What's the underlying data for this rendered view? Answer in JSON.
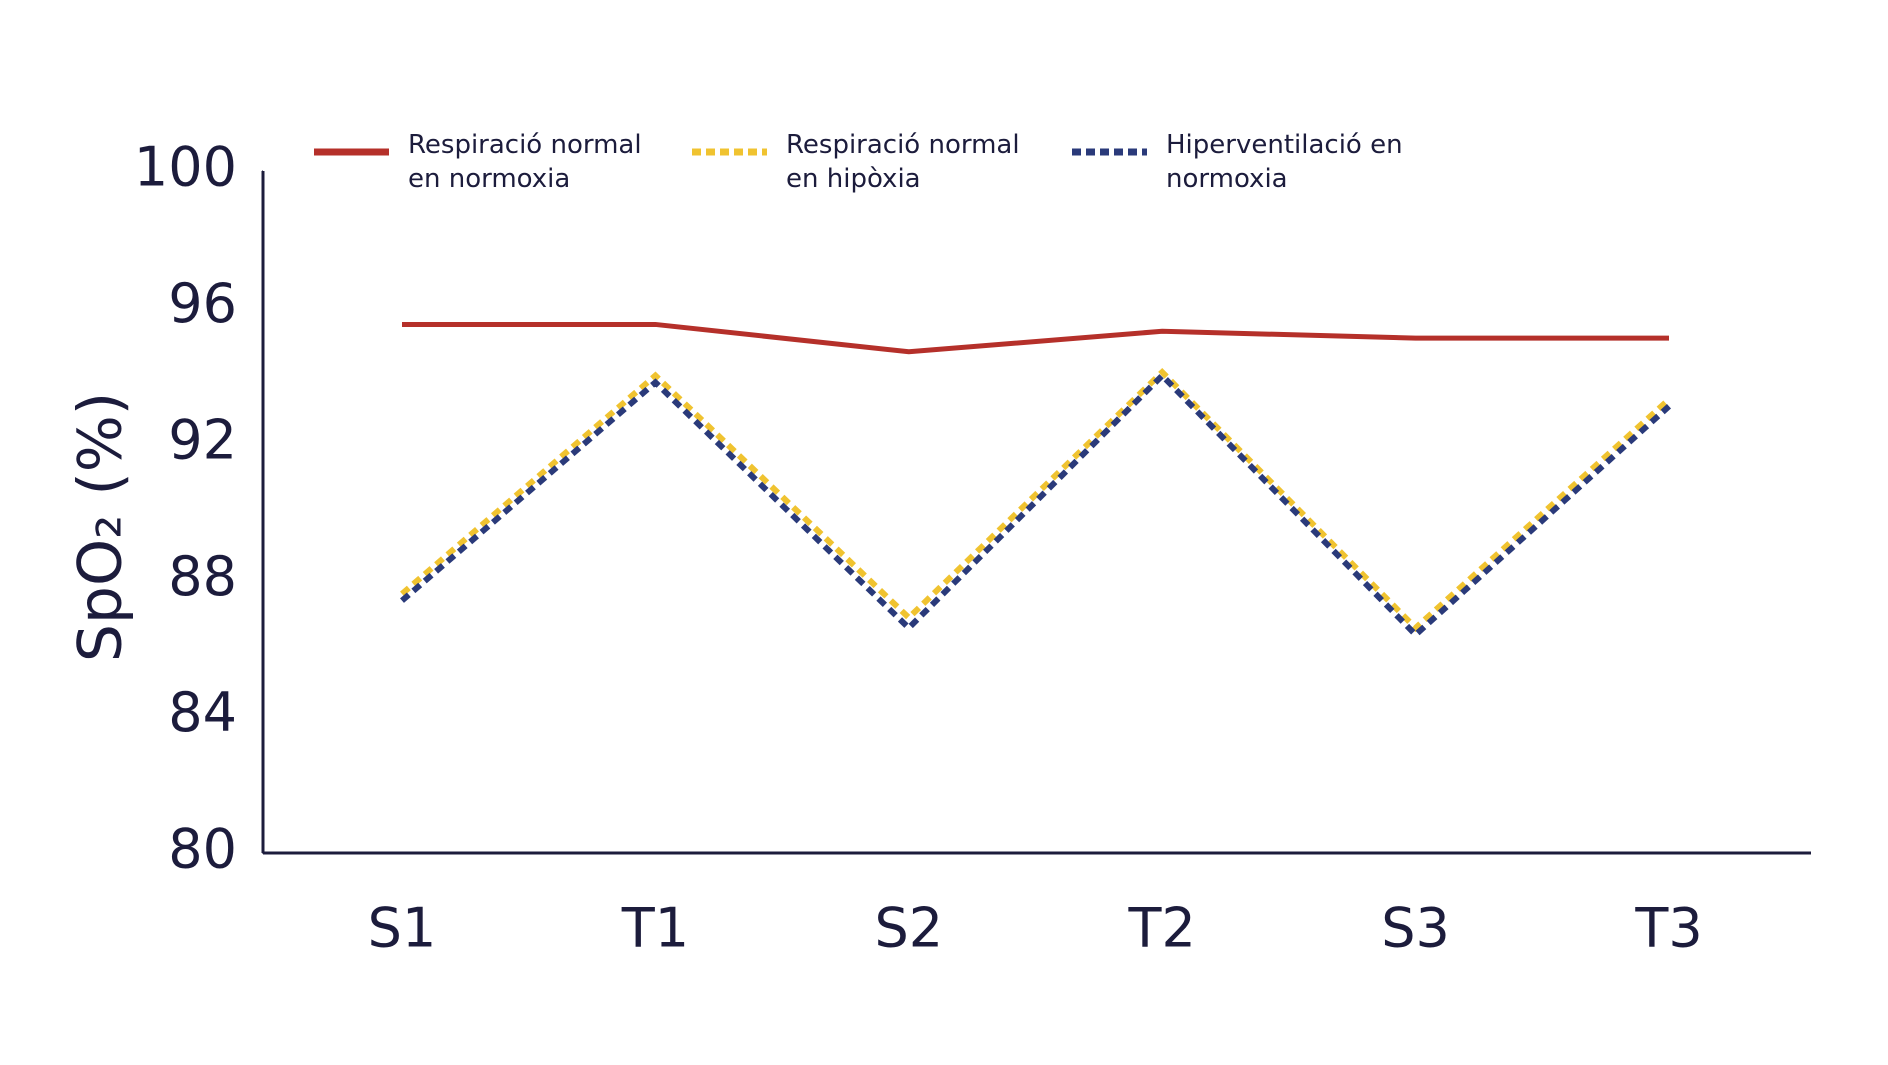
{
  "chart_data": {
    "type": "line",
    "y_label": "SpO₂ (%)",
    "categories": [
      "S1",
      "T1",
      "S2",
      "T2",
      "S3",
      "T3"
    ],
    "series": [
      {
        "name": "Respiració normal en normoxia",
        "color": "#b5302a",
        "style": "solid",
        "values": [
          95.5,
          95.5,
          94.7,
          95.3,
          95.1,
          95.1
        ]
      },
      {
        "name": "Respiració normal en hipòxia",
        "color": "#f0c330",
        "style": "dotted",
        "values": [
          87.6,
          94.0,
          86.9,
          94.1,
          86.6,
          93.3
        ]
      },
      {
        "name": "Hiperventilació en normoxia",
        "color": "#2a3a7a",
        "style": "dotted",
        "values": [
          87.4,
          93.8,
          86.6,
          94.0,
          86.4,
          93.1
        ]
      }
    ],
    "ylim": [
      80,
      100
    ],
    "yticks": [
      80,
      84,
      88,
      92,
      96,
      100
    ],
    "grid": false
  }
}
